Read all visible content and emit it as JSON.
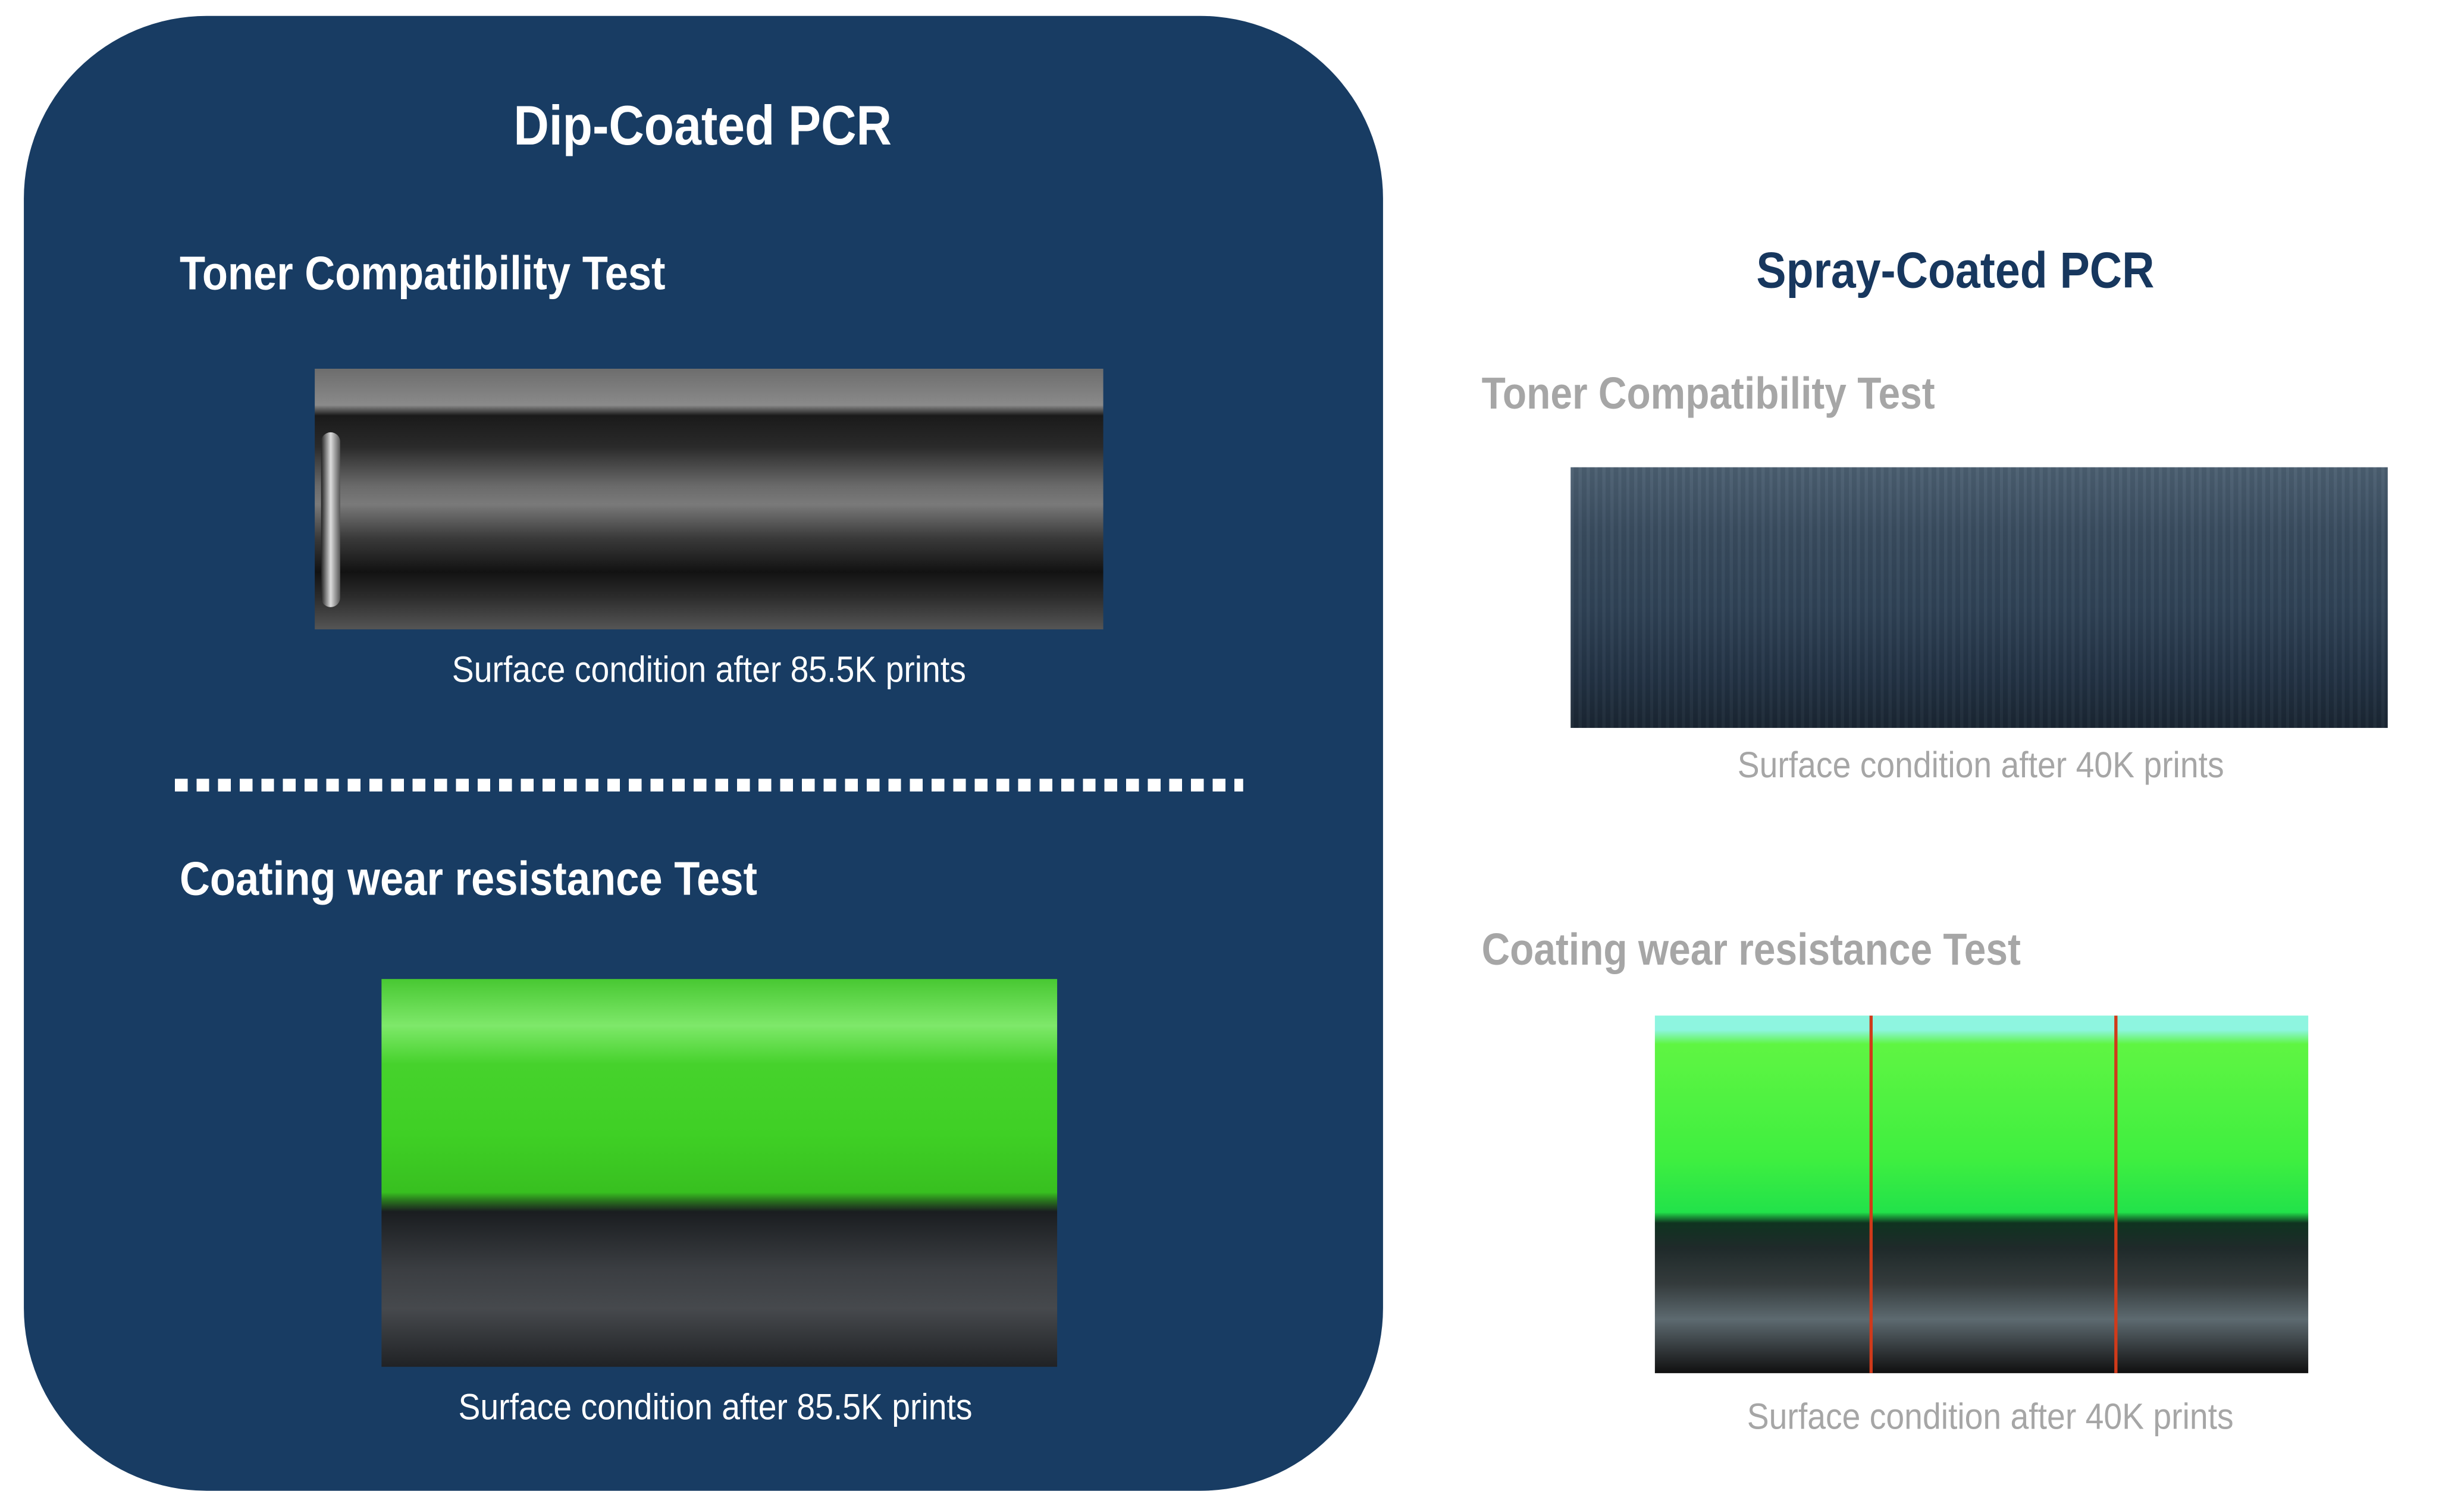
{
  "left_panel": {
    "title": "Dip-Coated PCR",
    "background_color": "#183c63",
    "toner_test": {
      "heading": "Toner Compatibility Test",
      "caption": "Surface condition after 85.5K prints"
    },
    "wear_test": {
      "heading": "Coating wear resistance Test",
      "caption": "Surface condition after 85.5K prints"
    }
  },
  "right_panel": {
    "title": "Spray-Coated PCR",
    "toner_test": {
      "heading": "Toner Compatibility Test",
      "caption": "Surface condition after 40K prints"
    },
    "wear_test": {
      "heading": "Coating wear resistance Test",
      "caption": "Surface condition after 40K prints"
    }
  }
}
